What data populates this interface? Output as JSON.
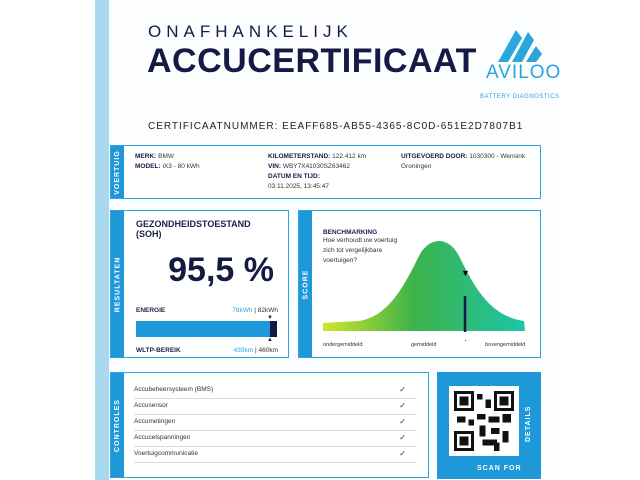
{
  "header": {
    "subtitle": "ONAFHANKELIJK",
    "title": "ACCUCERTIFICAAT",
    "certificate_number": "CERTIFICAATNUMMER: EEAFF685-AB55-4365-8C0D-651E2D7807B1"
  },
  "logo": {
    "name": "AVILOO",
    "tagline": "BATTERY DIAGNOSTICS"
  },
  "vehicle": {
    "section": "VOERTUIG",
    "brand_label": "MERK:",
    "brand": "BMW",
    "model_label": "MODEL:",
    "model": "iX3 - 80 kWh",
    "mileage_label": "KILOMETERSTAND:",
    "mileage": "122.412 km",
    "vin_label": "VIN:",
    "vin": "WBY7X41030SZ63462",
    "datetime_label": "DATUM EN TIJD:",
    "datetime": "03.11.2025, 13:45:47",
    "performed_label": "UITGEVOERD DOOR:",
    "performed_by": "1030300 - Wensink Groningen"
  },
  "results": {
    "section": "RESULTATEN",
    "soh_title": "GEZONDHEIDSTOESTAND (SOH)",
    "soh_value": "95,5 %",
    "soh_percent": 95.5,
    "energy_label": "ENERGIE",
    "energy_current": "78kWh",
    "energy_total": "| 82kWh",
    "range_label": "WLTP-BEREIK",
    "range_current": "439km",
    "range_total": "| 460km"
  },
  "score": {
    "section": "SCORE",
    "title": "BENCHMARKING",
    "question": "Hoe verhoudt uw voertuig zich tot vergelijkbare voertuigen?",
    "below": "ondergemiddeld",
    "average": "gemiddeld",
    "above": "bovengemiddeld"
  },
  "checks": {
    "section": "CONTROLES",
    "items": [
      {
        "label": "Accubeheersysteem (BMS)"
      },
      {
        "label": "Accusensor"
      },
      {
        "label": "Accumetingen"
      },
      {
        "label": "Accucelspanningen"
      },
      {
        "label": "Voertuigcommunicatie"
      }
    ],
    "check_icon": "✓"
  },
  "qr": {
    "scan": "SCAN FOR",
    "details": "DETAILS"
  },
  "colors": {
    "navy": "#151a45",
    "blue": "#1e98d8"
  }
}
